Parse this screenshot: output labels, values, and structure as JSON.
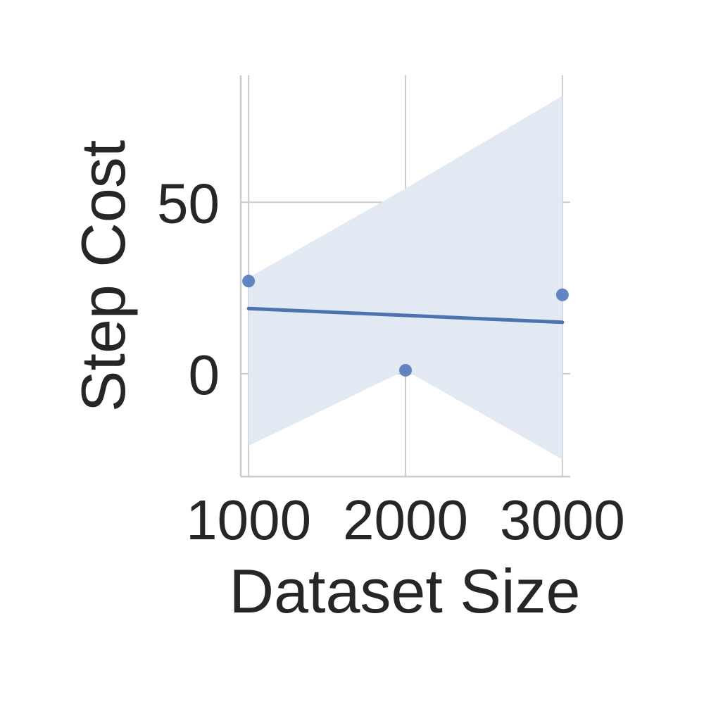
{
  "chart_data": {
    "type": "scatter",
    "title": "",
    "xlabel": "Dataset Size",
    "ylabel": "Step Cost",
    "xlim": [
      950,
      3050
    ],
    "ylim": [
      -30,
      87
    ],
    "x_ticks": [
      1000,
      2000,
      3000
    ],
    "x_tick_labels": [
      "1000",
      "2000",
      "3000"
    ],
    "y_ticks": [
      0,
      50
    ],
    "y_tick_labels": [
      "0",
      "50"
    ],
    "grid": true,
    "series": [
      {
        "points": [
          {
            "x": 1000,
            "y": 27
          },
          {
            "x": 2000,
            "y": 1
          },
          {
            "x": 3000,
            "y": 23
          }
        ],
        "regression": {
          "x": [
            1000,
            3000
          ],
          "y": [
            19,
            15
          ]
        },
        "confidence_band": [
          {
            "x": 1000,
            "lower": -21,
            "upper": 28
          },
          {
            "x": 2000,
            "lower": 1,
            "upper": 54
          },
          {
            "x": 3000,
            "lower": -25,
            "upper": 81
          }
        ]
      }
    ],
    "colors": {
      "points": "#5b7fbf",
      "line": "#4c72b0",
      "band": "#e3e9f3"
    }
  }
}
